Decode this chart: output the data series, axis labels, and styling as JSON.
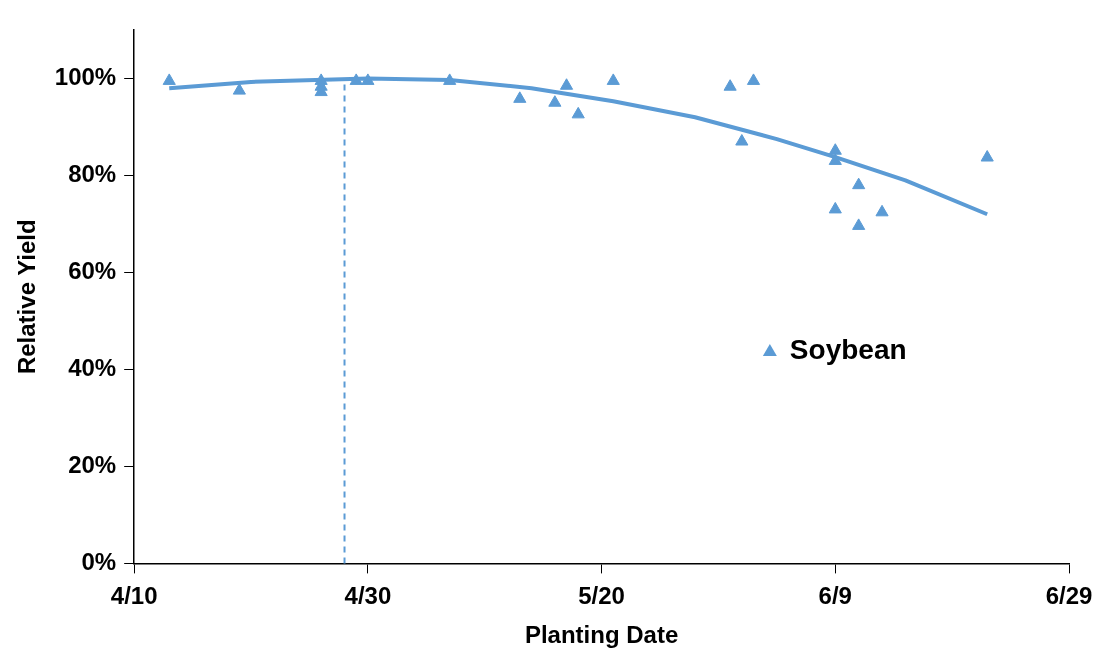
{
  "chart_data": {
    "type": "scatter",
    "xlabel": "Planting Date",
    "ylabel": "Relative Yield",
    "xlim": [
      "--04-10",
      "--06-29"
    ],
    "xticks": [
      {
        "value": "--04-10",
        "label": "4/10"
      },
      {
        "value": "--04-30",
        "label": "4/30"
      },
      {
        "value": "--05-20",
        "label": "5/20"
      },
      {
        "value": "--06-09",
        "label": "6/9"
      },
      {
        "value": "--06-29",
        "label": "6/29"
      }
    ],
    "ylim": [
      0,
      110
    ],
    "yticks": [
      {
        "value": 0,
        "label": "0%"
      },
      {
        "value": 20,
        "label": "20%"
      },
      {
        "value": 40,
        "label": "40%"
      },
      {
        "value": 60,
        "label": "60%"
      },
      {
        "value": 80,
        "label": "80%"
      },
      {
        "value": 100,
        "label": "100%"
      }
    ],
    "grid": false,
    "legend": "right",
    "marker": "triangle",
    "series": [
      {
        "name": "Soybean",
        "type": "scatter",
        "color": "#5b9bd5",
        "x": [
          "--04-13",
          "--04-19",
          "--04-26",
          "--04-26",
          "--04-26",
          "--04-29",
          "--04-30",
          "--05-07",
          "--05-13",
          "--05-16",
          "--05-17",
          "--05-18",
          "--05-21",
          "--05-31",
          "--06-01",
          "--06-02",
          "--06-09",
          "--06-09",
          "--06-09",
          "--06-11",
          "--06-11",
          "--06-13",
          "--06-22"
        ],
        "values": [
          99.5,
          97.5,
          99.5,
          98.3,
          97.2,
          99.5,
          99.5,
          99.5,
          95.8,
          95,
          98.5,
          92.6,
          99.5,
          98.3,
          87,
          99.5,
          85.1,
          83,
          73,
          78,
          69.6,
          72.4,
          83.7
        ]
      },
      {
        "type": "line",
        "color": "#5b9bd5",
        "marker": "none",
        "x": [
          "--04-13",
          "--04-20",
          "--04-30",
          "--05-07",
          "--05-14",
          "--05-21",
          "--05-28",
          "--06-04",
          "--06-09",
          "--06-15",
          "--06-22"
        ],
        "values": [
          98,
          99.3,
          100,
          99.7,
          98,
          95.3,
          92,
          87.5,
          83.8,
          79,
          72
        ]
      }
    ],
    "ref_lines": [
      {
        "axis": "x",
        "value": "--04-28",
        "color": "#5b9bd5",
        "line_style": "dashed"
      }
    ]
  }
}
